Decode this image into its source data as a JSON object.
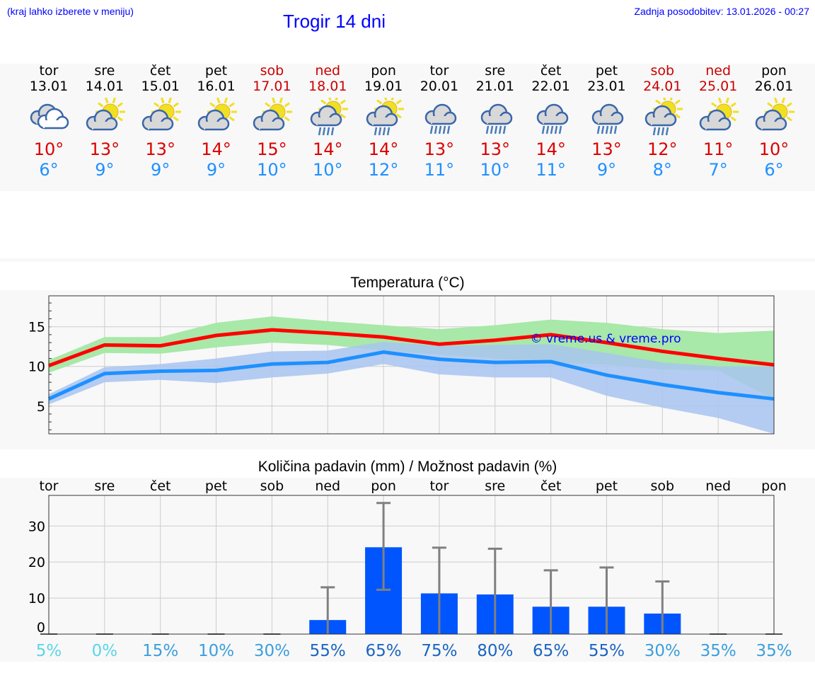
{
  "header": {
    "hint": "(kraj lahko izberete v meniju)",
    "title": "Trogir 14 dni",
    "updated": "Zadnja posodobitev: 13.01.2026 - 00:27"
  },
  "days": [
    {
      "day": "tor",
      "date": "13.01",
      "icon": "cloudy-icon",
      "max": "10°",
      "min": "6°",
      "weekend": false
    },
    {
      "day": "sre",
      "date": "14.01",
      "icon": "partly-sunny-icon",
      "max": "13°",
      "min": "9°",
      "weekend": false
    },
    {
      "day": "čet",
      "date": "15.01",
      "icon": "partly-sunny-icon",
      "max": "13°",
      "min": "9°",
      "weekend": false
    },
    {
      "day": "pet",
      "date": "16.01",
      "icon": "partly-sunny-icon",
      "max": "14°",
      "min": "9°",
      "weekend": false
    },
    {
      "day": "sob",
      "date": "17.01",
      "icon": "partly-sunny-icon",
      "max": "15°",
      "min": "10°",
      "weekend": true
    },
    {
      "day": "ned",
      "date": "18.01",
      "icon": "sun-cloud-rain-icon",
      "max": "14°",
      "min": "10°",
      "weekend": true
    },
    {
      "day": "pon",
      "date": "19.01",
      "icon": "sun-cloud-rain-icon",
      "max": "14°",
      "min": "12°",
      "weekend": false
    },
    {
      "day": "tor",
      "date": "20.01",
      "icon": "cloud-rain-icon",
      "max": "13°",
      "min": "11°",
      "weekend": false
    },
    {
      "day": "sre",
      "date": "21.01",
      "icon": "cloud-rain-icon",
      "max": "13°",
      "min": "10°",
      "weekend": false
    },
    {
      "day": "čet",
      "date": "22.01",
      "icon": "cloud-rain-icon",
      "max": "14°",
      "min": "11°",
      "weekend": false
    },
    {
      "day": "pet",
      "date": "23.01",
      "icon": "cloud-rain-icon",
      "max": "13°",
      "min": "9°",
      "weekend": false
    },
    {
      "day": "sob",
      "date": "24.01",
      "icon": "sun-cloud-rain-icon",
      "max": "12°",
      "min": "8°",
      "weekend": true
    },
    {
      "day": "ned",
      "date": "25.01",
      "icon": "partly-sunny-icon",
      "max": "11°",
      "min": "7°",
      "weekend": true
    },
    {
      "day": "pon",
      "date": "26.01",
      "icon": "partly-sunny-icon",
      "max": "10°",
      "min": "6°",
      "weekend": false
    }
  ],
  "colors": {
    "max": "#ff0000",
    "min": "#1e90ff",
    "max_band": "#a8e8a8",
    "min_band": "#a8c4f0",
    "bar": "#0055ff",
    "error": "#808080"
  },
  "chart_data": [
    {
      "type": "line",
      "title": "Temperatura (°C)",
      "watermark": "© vreme.us & vreme.pro",
      "ylim": [
        1.5,
        18.9
      ],
      "yticks": [
        5,
        10,
        15
      ],
      "x": [
        0,
        1,
        2,
        3,
        4,
        5,
        6,
        7,
        8,
        9,
        10,
        11,
        12,
        13
      ],
      "series": [
        {
          "name": "max",
          "values": [
            10.1,
            12.7,
            12.6,
            13.9,
            14.6,
            14.2,
            13.7,
            12.8,
            13.3,
            14.0,
            13.0,
            11.9,
            11.0,
            10.2
          ],
          "band_low": [
            9.2,
            11.7,
            11.6,
            12.4,
            13.0,
            12.7,
            12.0,
            11.5,
            11.0,
            10.5,
            10.2,
            9.6,
            9.5,
            5.8
          ],
          "band_high": [
            10.8,
            13.7,
            13.7,
            15.5,
            16.3,
            15.7,
            15.2,
            14.7,
            15.2,
            15.9,
            15.5,
            14.7,
            14.2,
            14.5
          ]
        },
        {
          "name": "min",
          "values": [
            5.9,
            9.1,
            9.4,
            9.5,
            10.3,
            10.5,
            11.8,
            10.9,
            10.5,
            10.6,
            8.9,
            7.7,
            6.7,
            5.9
          ],
          "band_low": [
            5.2,
            8.0,
            8.3,
            7.9,
            8.6,
            9.1,
            10.3,
            9.0,
            8.6,
            8.6,
            6.3,
            4.8,
            3.5,
            1.5
          ],
          "band_high": [
            6.5,
            9.9,
            10.3,
            11.0,
            11.9,
            12.0,
            13.1,
            12.6,
            12.7,
            12.8,
            11.7,
            10.5,
            10.0,
            10.0
          ]
        }
      ]
    },
    {
      "type": "bar",
      "title": "Količina padavin (mm) / Možnost padavin (%)",
      "ylim": [
        0,
        38.5
      ],
      "yticks": [
        0,
        10,
        20,
        30
      ],
      "categories": [
        "tor",
        "sre",
        "čet",
        "pet",
        "sob",
        "ned",
        "pon",
        "tor",
        "sre",
        "čet",
        "pet",
        "sob",
        "ned",
        "pon"
      ],
      "values": [
        0,
        0,
        0,
        0,
        0,
        3.9,
        24.1,
        11.3,
        11.0,
        7.6,
        7.6,
        5.7,
        0,
        0
      ],
      "err_low": [
        0,
        0,
        0,
        0,
        0,
        0,
        12.3,
        0,
        0,
        0,
        0,
        0,
        0,
        0
      ],
      "err_high": [
        0,
        0,
        0,
        0,
        0,
        13.0,
        36.4,
        24.0,
        23.7,
        17.7,
        18.5,
        14.6,
        0,
        0
      ],
      "probability": [
        "5%",
        "0%",
        "15%",
        "10%",
        "30%",
        "55%",
        "65%",
        "75%",
        "80%",
        "65%",
        "55%",
        "30%",
        "35%",
        "35%"
      ],
      "probability_values": [
        5,
        0,
        15,
        10,
        30,
        55,
        65,
        75,
        80,
        65,
        55,
        30,
        35,
        35
      ]
    }
  ]
}
